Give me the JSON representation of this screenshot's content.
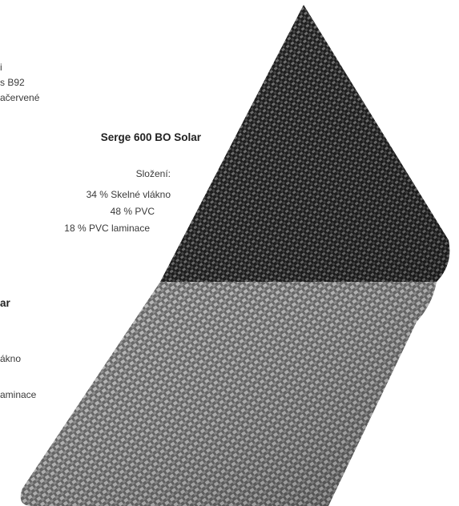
{
  "top_left_block": {
    "lines": [
      "i",
      "s B92",
      "ačervené"
    ]
  },
  "serge_600": {
    "title": "Serge 600 BO Solar",
    "composition_heading": "Složení:",
    "components": [
      "34 % Skelné vlákno",
      "48 % PVC",
      "18 % PVC laminace"
    ]
  },
  "bottom_left_block": {
    "title_fragment": "ar",
    "lines": [
      "ákno",
      "aminace"
    ]
  },
  "swatches": {
    "top_color": "#2b2b2b",
    "bottom_color": "#7a7a7a",
    "top_label": "dark weave",
    "bottom_label": "light weave"
  }
}
